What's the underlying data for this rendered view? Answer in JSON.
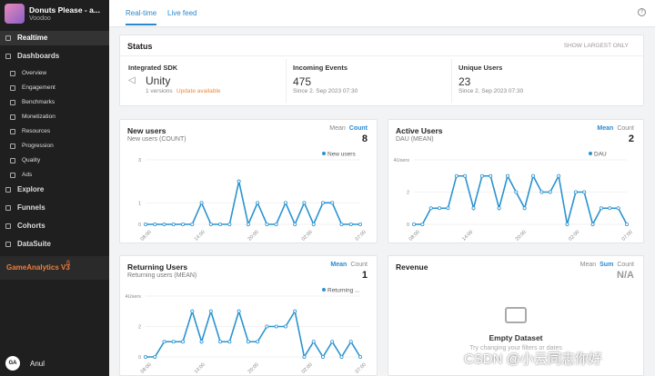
{
  "sidebar": {
    "app_name": "Donuts Please - a...",
    "app_sub": "Voodoo",
    "nav": [
      {
        "label": "Realtime",
        "level": 0
      },
      {
        "label": "Dashboards",
        "level": 0
      },
      {
        "label": "Overview",
        "level": 1
      },
      {
        "label": "Engagement",
        "level": 1
      },
      {
        "label": "Benchmarks",
        "level": 1
      },
      {
        "label": "Monetization",
        "level": 1
      },
      {
        "label": "Resources",
        "level": 1
      },
      {
        "label": "Progression",
        "level": 1
      },
      {
        "label": "Quality",
        "level": 1
      },
      {
        "label": "Ads",
        "level": 1
      },
      {
        "label": "Explore",
        "level": 0
      },
      {
        "label": "Funnels",
        "level": 0
      },
      {
        "label": "Cohorts",
        "level": 0
      },
      {
        "label": "DataSuite",
        "level": 0
      }
    ],
    "brand": "GameAnalytics V3",
    "brand_badge": "ß",
    "avatar": "GA",
    "user": "Anul"
  },
  "tabs": [
    "Real-time",
    "Live feed"
  ],
  "status": {
    "title": "Status",
    "action": "SHOW LARGEST ONLY",
    "sdk": {
      "label": "Integrated SDK",
      "value": "Unity",
      "versions": "1 versions",
      "update": "Update available"
    },
    "events": {
      "label": "Incoming Events",
      "value": "475",
      "since": "Since 2. Sep 2023 07:30"
    },
    "users": {
      "label": "Unique Users",
      "value": "23",
      "since": "Since 2. Sep 2023 07:30"
    }
  },
  "charts": [
    {
      "title": "New users",
      "subtitle": "New users (COUNT)",
      "toggle": [
        "Mean",
        "Count"
      ],
      "active": 1,
      "total": "8",
      "legend": "New users",
      "color": "#2a93d0",
      "ylim": [
        0,
        3
      ],
      "yticks": [
        0,
        1,
        3
      ],
      "x_labels": [
        "08:00",
        "14:00",
        "20:00",
        "02:00",
        "07:00"
      ],
      "values": [
        0,
        0,
        0,
        0,
        0,
        0,
        1,
        0,
        0,
        0,
        2,
        0,
        1,
        0,
        0,
        1,
        0,
        1,
        0,
        1,
        1,
        0,
        0,
        0
      ]
    },
    {
      "title": "Active Users",
      "subtitle": "DAU (MEAN)",
      "toggle": [
        "Mean",
        "Count"
      ],
      "active": 0,
      "total": "2",
      "legend": "DAU",
      "color": "#2a93d0",
      "ylim": [
        0,
        4
      ],
      "yticks": [
        0,
        2,
        {
          "value": 4,
          "label": "4Users"
        }
      ],
      "x_labels": [
        "08:00",
        "14:00",
        "20:00",
        "02:00",
        "07:00"
      ],
      "values": [
        0,
        0,
        1,
        1,
        1,
        3,
        3,
        1,
        3,
        3,
        1,
        3,
        2,
        1,
        3,
        2,
        2,
        3,
        0,
        2,
        2,
        0,
        1,
        1,
        1,
        0
      ]
    },
    {
      "title": "Returning Users",
      "subtitle": "Returning users (MEAN)",
      "toggle": [
        "Mean",
        "Count"
      ],
      "active": 0,
      "total": "1",
      "legend": "Returning ...",
      "color": "#2a93d0",
      "ylim": [
        0,
        4
      ],
      "yticks": [
        0,
        2,
        {
          "value": 4,
          "label": "4Users"
        }
      ],
      "x_labels": [
        "08:00",
        "14:00",
        "20:00",
        "02:00",
        "07:00"
      ],
      "values": [
        0,
        0,
        1,
        1,
        1,
        3,
        1,
        3,
        1,
        1,
        3,
        1,
        1,
        2,
        2,
        2,
        3,
        0,
        1,
        0,
        1,
        0,
        1,
        0
      ]
    }
  ],
  "revenue": {
    "title": "Revenue",
    "toggle": [
      "Mean",
      "Sum",
      "Count"
    ],
    "active": 1,
    "total": "N/A",
    "empty": "Empty Dataset",
    "hint": "Try changing your filters or dates"
  },
  "watermark": "CSDN @小云同志你好"
}
